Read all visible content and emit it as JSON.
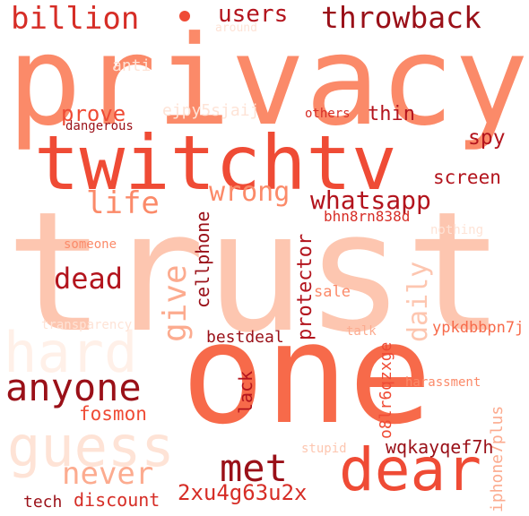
{
  "palette": {
    "darkest": "#9a1018",
    "dark": "#b3141d",
    "red": "#d62d26",
    "orange_red": "#ef4b35",
    "coral": "#f76a4a",
    "salmon": "#fb8a69",
    "light_salmon": "#fcab8f",
    "peach": "#fdc6b0",
    "pale": "#fee3d6",
    "palest": "#fff0e8"
  },
  "words": {
    "privacy": "privacy",
    "trust": "trust",
    "one": "one",
    "twitchtv": "twitchtv",
    "billion": "billion",
    "users": "users",
    "throwback": "throwback",
    "around": "around",
    "anti": "anti",
    "ejpy5sjaij": "ejpy5sjaij",
    "prove": "prove",
    "others": "others",
    "thin": "thin",
    "dangerous": "dangerous",
    "spy": "spy",
    "screen": "screen",
    "life": "life",
    "wrong": "wrong",
    "whatsapp": "whatsapp",
    "bhn8rn838d": "bhn8rn838d",
    "nothing": "nothing",
    "someone": "someone",
    "dead": "dead",
    "give": "give",
    "cellphone": "cellphone",
    "protector": "protector",
    "daily": "daily",
    "sale": "sale",
    "hard": "hard",
    "transparency": "transparency",
    "bestdeal": "bestdeal",
    "talk": "talk",
    "ypkdbbpn7j": "ypkdbbpn7j",
    "anyone": "anyone",
    "lack": "lack",
    "o8lr6qzxge": "o8lr6qzxge",
    "harassment": "harassment",
    "guess": "guess",
    "fosmon": "fosmon",
    "iphone7plus": "iphone7plus",
    "stupid": "stupid",
    "wqkayqef7h": "wqkayqef7h",
    "never": "never",
    "met": "met",
    "dear": "dear",
    "2xu4g63u2x": "2xu4g63u2x",
    "tech": "tech",
    "discount": "discount"
  }
}
